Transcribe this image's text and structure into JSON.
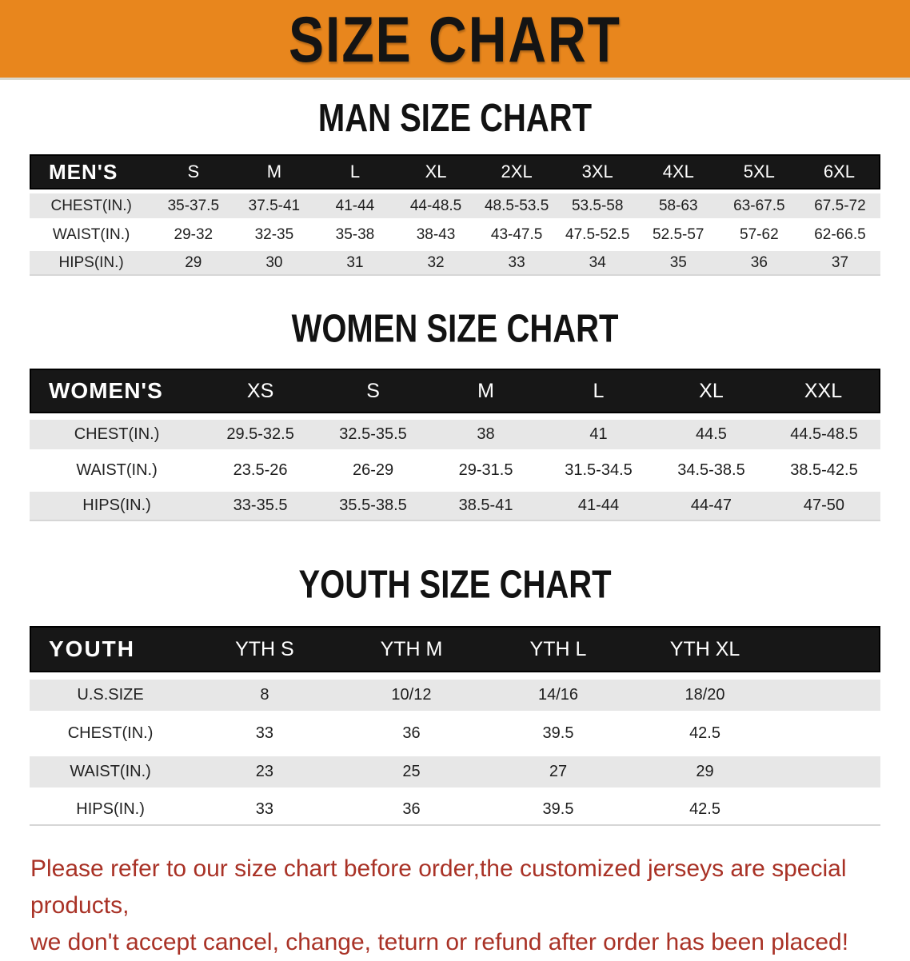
{
  "banner": {
    "title": "SIZE CHART",
    "bg_color": "#e8861d",
    "text_color": "#141414"
  },
  "sections": [
    {
      "id": "men",
      "heading": "MAN SIZE CHART",
      "table": {
        "header_label": "MEN'S",
        "columns": [
          "S",
          "M",
          "L",
          "XL",
          "2XL",
          "3XL",
          "4XL",
          "5XL",
          "6XL"
        ],
        "rows": [
          {
            "label": "CHEST(IN.)",
            "values": [
              "35-37.5",
              "37.5-41",
              "41-44",
              "44-48.5",
              "48.5-53.5",
              "53.5-58",
              "58-63",
              "63-67.5",
              "67.5-72"
            ]
          },
          {
            "label": "WAIST(IN.)",
            "values": [
              "29-32",
              "32-35",
              "35-38",
              "38-43",
              "43-47.5",
              "47.5-52.5",
              "52.5-57",
              "57-62",
              "62-66.5"
            ]
          },
          {
            "label": "HIPS(IN.)",
            "values": [
              "29",
              "30",
              "31",
              "32",
              "33",
              "34",
              "35",
              "36",
              "37"
            ]
          }
        ]
      }
    },
    {
      "id": "women",
      "heading": "WOMEN SIZE CHART",
      "table": {
        "header_label": "WOMEN'S",
        "columns": [
          "XS",
          "S",
          "M",
          "L",
          "XL",
          "XXL"
        ],
        "rows": [
          {
            "label": "CHEST(IN.)",
            "values": [
              "29.5-32.5",
              "32.5-35.5",
              "38",
              "41",
              "44.5",
              "44.5-48.5"
            ]
          },
          {
            "label": "WAIST(IN.)",
            "values": [
              "23.5-26",
              "26-29",
              "29-31.5",
              "31.5-34.5",
              "34.5-38.5",
              "38.5-42.5"
            ]
          },
          {
            "label": "HIPS(IN.)",
            "values": [
              "33-35.5",
              "35.5-38.5",
              "38.5-41",
              "41-44",
              "44-47",
              "47-50"
            ]
          }
        ]
      }
    },
    {
      "id": "youth",
      "heading": "YOUTH SIZE CHART",
      "table": {
        "header_label": "YOUTH",
        "columns": [
          "YTH S",
          "YTH M",
          "YTH L",
          "YTH XL"
        ],
        "rows": [
          {
            "label": "U.S.SIZE",
            "values": [
              "8",
              "10/12",
              "14/16",
              "18/20"
            ]
          },
          {
            "label": "CHEST(IN.)",
            "values": [
              "33",
              "36",
              "39.5",
              "42.5"
            ]
          },
          {
            "label": "WAIST(IN.)",
            "values": [
              "23",
              "25",
              "27",
              "29"
            ]
          },
          {
            "label": "HIPS(IN.)",
            "values": [
              "33",
              "36",
              "39.5",
              "42.5"
            ]
          }
        ]
      }
    }
  ],
  "disclaimer": {
    "lines": [
      "Please refer to our size chart before order,the customized jerseys are special products,",
      "we don't accept cancel, change, teturn or refund after order has been placed!"
    ],
    "text_color": "#a93226"
  }
}
